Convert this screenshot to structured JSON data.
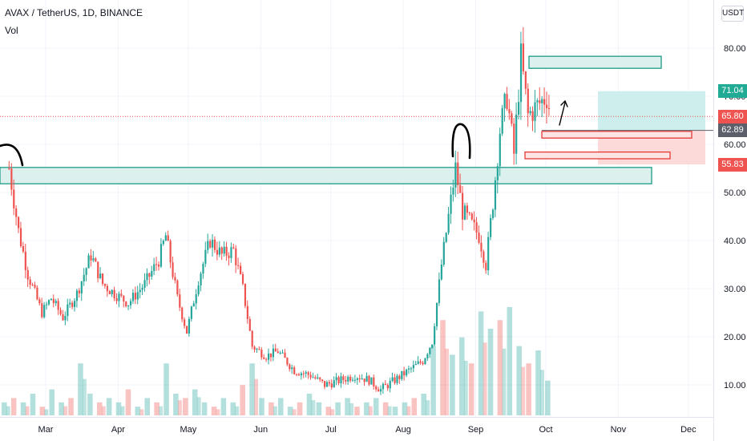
{
  "header": {
    "symbol_line": "AVAX / TetherUS, 1D, BINANCE",
    "volume_label": "Vol"
  },
  "currency_button": "USDT",
  "colors": {
    "up": "#26a69a",
    "down": "#ef5350",
    "zone_fill": "#d8f0ec",
    "zone_stroke": "#1e9c86",
    "target_fill": "#cdeeec",
    "stop_fill": "#fcdada",
    "stop_stroke": "#e53935",
    "grid": "#f0f3fa",
    "price_line": "#ef5350"
  },
  "price_labels": [
    {
      "value": 71.04,
      "text": "71.04",
      "color": "#22ab94"
    },
    {
      "value": 65.8,
      "text": "65.80",
      "color": "#ef5350"
    },
    {
      "value": 62.89,
      "text": "62.89",
      "color": "#5d606b"
    },
    {
      "value": 55.83,
      "text": "55.83",
      "color": "#ef5350"
    }
  ],
  "chart_data": {
    "type": "candlestick",
    "y_ticks": [
      "80.00",
      "70.00",
      "60.00",
      "50.00",
      "40.00",
      "30.00",
      "20.00",
      "10.00"
    ],
    "y_tick_values": [
      80,
      70,
      60,
      50,
      40,
      30,
      20,
      10
    ],
    "x_ticks": [
      "Mar",
      "Apr",
      "May",
      "Jun",
      "Jul",
      "Aug",
      "Sep",
      "Oct",
      "Nov",
      "Dec"
    ],
    "ylim": [
      2,
      88
    ],
    "current_price": 65.8,
    "price_path": [
      {
        "date": "Feb 13",
        "price": 55
      },
      {
        "date": "Feb 17",
        "price": 42
      },
      {
        "date": "Feb 21",
        "price": 33
      },
      {
        "date": "Feb 27",
        "price": 25
      },
      {
        "date": "Mar 03",
        "price": 28
      },
      {
        "date": "Mar 08",
        "price": 24
      },
      {
        "date": "Mar 14",
        "price": 29
      },
      {
        "date": "Mar 20",
        "price": 37
      },
      {
        "date": "Mar 25",
        "price": 31
      },
      {
        "date": "Mar 30",
        "price": 29
      },
      {
        "date": "Apr 05",
        "price": 27
      },
      {
        "date": "Apr 12",
        "price": 31
      },
      {
        "date": "Apr 18",
        "price": 36
      },
      {
        "date": "Apr 21",
        "price": 41
      },
      {
        "date": "Apr 26",
        "price": 28
      },
      {
        "date": "Apr 30",
        "price": 21
      },
      {
        "date": "May 05",
        "price": 32
      },
      {
        "date": "May 10",
        "price": 40
      },
      {
        "date": "May 15",
        "price": 37
      },
      {
        "date": "May 20",
        "price": 38
      },
      {
        "date": "May 24",
        "price": 30
      },
      {
        "date": "May 28",
        "price": 18
      },
      {
        "date": "Jun 03",
        "price": 16
      },
      {
        "date": "Jun 08",
        "price": 17
      },
      {
        "date": "Jun 15",
        "price": 13
      },
      {
        "date": "Jun 22",
        "price": 12
      },
      {
        "date": "Jun 28",
        "price": 10
      },
      {
        "date": "Jul 05",
        "price": 11
      },
      {
        "date": "Jul 11",
        "price": 12
      },
      {
        "date": "Jul 17",
        "price": 11
      },
      {
        "date": "Jul 22",
        "price": 9
      },
      {
        "date": "Jul 28",
        "price": 11
      },
      {
        "date": "Aug 03",
        "price": 13
      },
      {
        "date": "Aug 09",
        "price": 15
      },
      {
        "date": "Aug 13",
        "price": 19
      },
      {
        "date": "Aug 17",
        "price": 35
      },
      {
        "date": "Aug 20",
        "price": 45
      },
      {
        "date": "Aug 23",
        "price": 55
      },
      {
        "date": "Aug 26",
        "price": 46
      },
      {
        "date": "Aug 29",
        "price": 44
      },
      {
        "date": "Sep 02",
        "price": 41
      },
      {
        "date": "Sep 05",
        "price": 35
      },
      {
        "date": "Sep 08",
        "price": 48
      },
      {
        "date": "Sep 11",
        "price": 63
      },
      {
        "date": "Sep 14",
        "price": 70
      },
      {
        "date": "Sep 17",
        "price": 58
      },
      {
        "date": "Sep 20",
        "price": 78
      },
      {
        "date": "Sep 23",
        "price": 66
      },
      {
        "date": "Sep 27",
        "price": 68
      },
      {
        "date": "Oct 01",
        "price": 70
      },
      {
        "date": "Oct 03",
        "price": 65.8
      }
    ],
    "volume_levels": [
      3,
      4,
      3,
      5,
      2,
      6,
      3,
      4,
      12,
      5,
      3,
      4,
      3,
      6,
      2,
      4,
      3,
      12,
      5,
      4,
      6,
      3,
      2,
      4,
      3,
      7,
      12,
      4,
      3,
      4,
      2,
      3,
      5,
      3,
      2,
      3,
      4,
      2,
      3,
      4,
      3,
      2,
      3,
      4,
      5,
      16,
      22,
      14,
      18,
      12,
      24,
      20,
      22,
      25,
      16,
      12,
      15,
      8
    ]
  },
  "drawings": {
    "demand_zone": {
      "low": 51.8,
      "high": 55.2,
      "label": ""
    },
    "supply_zone": {
      "low": 75.8,
      "high": 78.3,
      "label": ""
    },
    "target_box": {
      "low": 62.89,
      "high": 71.04
    },
    "stop_box": {
      "low": 55.83,
      "high": 62.89
    },
    "stop_bar_1": {
      "low": 61.3,
      "high": 62.7
    },
    "stop_bar_2": {
      "low": 57.0,
      "high": 58.4
    }
  }
}
